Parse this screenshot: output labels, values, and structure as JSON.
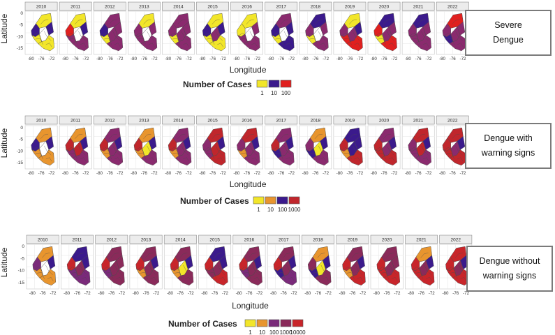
{
  "panels": [
    {
      "id": "severe",
      "box_lines": [
        "Severe",
        "Dengue"
      ],
      "legend_title": "Number of Cases",
      "legend": [
        {
          "label": "1",
          "color": "#f2e62a"
        },
        {
          "label": "10",
          "color": "#3b1a8c"
        },
        {
          "label": "100",
          "color": "#e0201f"
        }
      ],
      "region_colors": [
        [
          "#3b1a8c",
          "#f2e62a",
          "#f2e62a",
          "#ffffff",
          "#3b1a8c",
          "#f2e62a"
        ],
        [
          "#e0201f",
          "#f2e62a",
          "#8a2a6e",
          "#ffffff",
          "#3b1a8c",
          "#8a2a6e"
        ],
        [
          "#3b1a8c",
          "#8a2a6e",
          "#f2e62a",
          "#8a2a6e",
          "#8a2a6e",
          "#8a2a6e"
        ],
        [
          "#8a2a6e",
          "#f2e62a",
          "#8a2a6e",
          "#ffffff",
          "#8a2a6e",
          "#8a2a6e"
        ],
        [
          "#8a2a6e",
          "#8a2a6e",
          "#f2e62a",
          "#8a2a6e",
          "#8a2a6e",
          "#8a2a6e"
        ],
        [
          "#3b1a8c",
          "#f2e62a",
          "#f2e62a",
          "#8a2a6e",
          "#3b1a8c",
          "#f2e62a"
        ],
        [
          "#f2e62a",
          "#f2e62a",
          "#8a2a6e",
          "#ffffff",
          "#8a2a6e",
          "#8a2a6e"
        ],
        [
          "#3b1a8c",
          "#8a2a6e",
          "#f2e62a",
          "#ffffff",
          "#3b1a8c",
          "#3b1a8c"
        ],
        [
          "#8a2a6e",
          "#3b1a8c",
          "#f2e62a",
          "#ffffff",
          "#8a2a6e",
          "#8a2a6e"
        ],
        [
          "#8a2a6e",
          "#f2e62a",
          "#e0201f",
          "#8a2a6e",
          "#3b1a8c",
          "#e0201f"
        ],
        [
          "#e0201f",
          "#3b1a8c",
          "#f2e62a",
          "#8a2a6e",
          "#8a2a6e",
          "#e0201f"
        ],
        [
          "#8a2a6e",
          "#3b1a8c",
          "#8a2a6e",
          "#8a2a6e",
          "#8a2a6e",
          "#8a2a6e"
        ],
        [
          "#8a2a6e",
          "#e0201f",
          "#3b1a8c",
          "#8a2a6e",
          "#8a2a6e",
          "#8a2a6e"
        ]
      ]
    },
    {
      "id": "warning",
      "box_lines": [
        "Dengue with",
        "warning signs"
      ],
      "legend_title": "Number of Cases",
      "legend": [
        {
          "label": "1",
          "color": "#f2e62a"
        },
        {
          "label": "10",
          "color": "#e8952e"
        },
        {
          "label": "100",
          "color": "#3b1a8c"
        },
        {
          "label": "1000",
          "color": "#c0262c"
        }
      ],
      "region_colors": [
        [
          "#3b1a8c",
          "#e8952e",
          "#e8952e",
          "#ffffff",
          "#3b1a8c",
          "#e8952e"
        ],
        [
          "#c0262c",
          "#e8952e",
          "#8a2a6e",
          "#c0262c",
          "#3b1a8c",
          "#8a2a6e"
        ],
        [
          "#c0262c",
          "#8a2a6e",
          "#e8952e",
          "#8a2a6e",
          "#3b1a8c",
          "#8a2a6e"
        ],
        [
          "#c0262c",
          "#e8952e",
          "#e8952e",
          "#f2e62a",
          "#3b1a8c",
          "#8a2a6e"
        ],
        [
          "#c0262c",
          "#8a2a6e",
          "#e8952e",
          "#8a2a6e",
          "#3b1a8c",
          "#8a2a6e"
        ],
        [
          "#8a2a6e",
          "#c0262c",
          "#8a2a6e",
          "#c0262c",
          "#3b1a8c",
          "#c0262c"
        ],
        [
          "#8a2a6e",
          "#c0262c",
          "#e8952e",
          "#8a2a6e",
          "#3b1a8c",
          "#8a2a6e"
        ],
        [
          "#c0262c",
          "#8a2a6e",
          "#3b1a8c",
          "#8a2a6e",
          "#3b1a8c",
          "#8a2a6e"
        ],
        [
          "#8a2a6e",
          "#e8952e",
          "#3b1a8c",
          "#f2e62a",
          "#3b1a8c",
          "#8a2a6e"
        ],
        [
          "#c0262c",
          "#3b1a8c",
          "#e8952e",
          "#3b1a8c",
          "#3b1a8c",
          "#c0262c"
        ],
        [
          "#c0262c",
          "#8a2a6e",
          "#c0262c",
          "#8a2a6e",
          "#3b1a8c",
          "#c0262c"
        ],
        [
          "#8a2a6e",
          "#c0262c",
          "#8a2a6e",
          "#c0262c",
          "#3b1a8c",
          "#8a2a6e"
        ],
        [
          "#c0262c",
          "#c0262c",
          "#c0262c",
          "#8a2a6e",
          "#3b1a8c",
          "#c0262c"
        ]
      ]
    },
    {
      "id": "without",
      "box_lines": [
        "Dengue without",
        "warning signs"
      ],
      "legend_title": "Number of Cases",
      "legend": [
        {
          "label": "1",
          "color": "#f2e62a"
        },
        {
          "label": "10",
          "color": "#e8952e"
        },
        {
          "label": "100",
          "color": "#7a2a7a"
        },
        {
          "label": "1000",
          "color": "#8a2a5a"
        },
        {
          "label": "10000",
          "color": "#c8252a"
        }
      ],
      "region_colors": [
        [
          "#7a2a7a",
          "#e8952e",
          "#e8952e",
          "#ffffff",
          "#3b1a8c",
          "#e8952e"
        ],
        [
          "#c8252a",
          "#3b1a8c",
          "#7a2a7a",
          "#8a2a5a",
          "#3b1a8c",
          "#7a2a7a"
        ],
        [
          "#c8252a",
          "#8a2a5a",
          "#7a2a7a",
          "#8a2a5a",
          "#8a2a5a",
          "#8a2a5a"
        ],
        [
          "#c8252a",
          "#8a2a5a",
          "#e8952e",
          "#8a2a5a",
          "#3b1a8c",
          "#8a2a5a"
        ],
        [
          "#c8252a",
          "#8a2a5a",
          "#e8952e",
          "#f2e62a",
          "#3b1a8c",
          "#8a2a5a"
        ],
        [
          "#c8252a",
          "#3b1a8c",
          "#8a2a5a",
          "#8a2a5a",
          "#3b1a8c",
          "#c8252a"
        ],
        [
          "#c8252a",
          "#8a2a5a",
          "#7a2a7a",
          "#8a2a5a",
          "#3b1a8c",
          "#8a2a5a"
        ],
        [
          "#c8252a",
          "#8a2a5a",
          "#3b1a8c",
          "#8a2a5a",
          "#3b1a8c",
          "#7a2a7a"
        ],
        [
          "#8a2a5a",
          "#e8952e",
          "#3b1a8c",
          "#f2e62a",
          "#3b1a8c",
          "#8a2a5a"
        ],
        [
          "#c8252a",
          "#8a2a5a",
          "#e8952e",
          "#8a2a5a",
          "#3b1a8c",
          "#c8252a"
        ],
        [
          "#c8252a",
          "#8a2a5a",
          "#c8252a",
          "#8a2a5a",
          "#8a2a5a",
          "#c8252a"
        ],
        [
          "#c8252a",
          "#e8952e",
          "#c8252a",
          "#8a2a5a",
          "#3b1a8c",
          "#c8252a"
        ],
        [
          "#c8252a",
          "#c8252a",
          "#c8252a",
          "#8a2a5a",
          "#3b1a8c",
          "#c8252a"
        ]
      ]
    }
  ],
  "years": [
    "2010",
    "2011",
    "2012",
    "2013",
    "2014",
    "2015",
    "2016",
    "2017",
    "2018",
    "2019",
    "2020",
    "2021",
    "2022"
  ],
  "x_ticks": [
    "-80",
    "-76",
    "-72"
  ],
  "y_ticks": [
    "0",
    "-5",
    "-10",
    "-15"
  ],
  "x_title": "Longitude",
  "y_title": "Latitude",
  "stroke_color": "#4a4a4a"
}
